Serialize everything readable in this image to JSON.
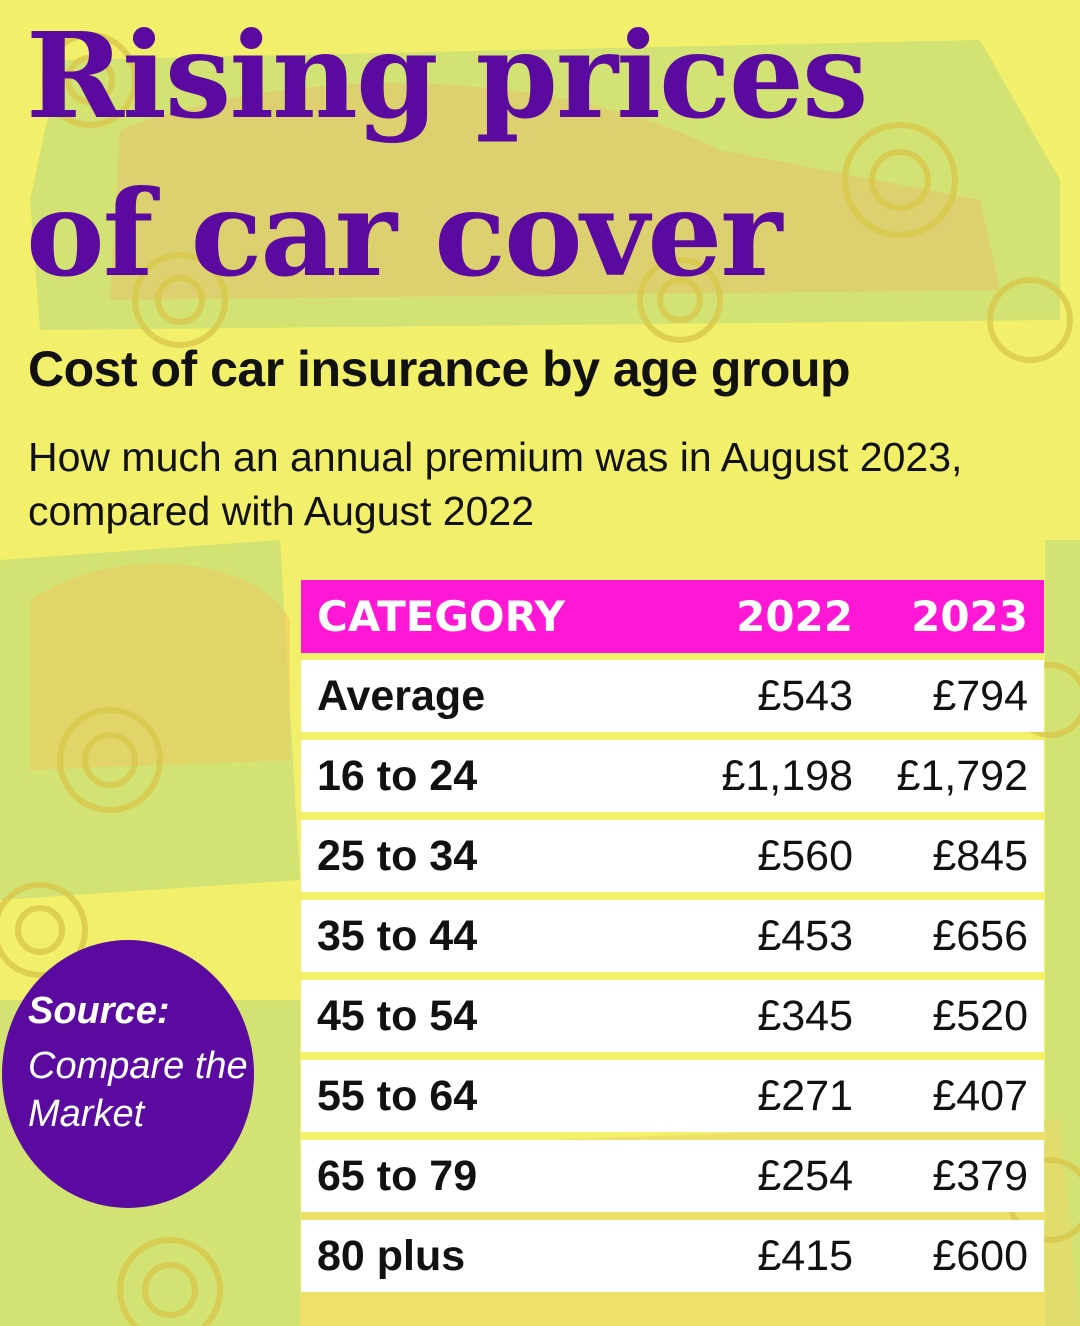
{
  "title_lines": [
    "Rising prices",
    "of car cover"
  ],
  "subtitle": "Cost of car insurance by age group",
  "standfirst": "How much an annual premium was in August 2023, compared with August 2022",
  "source": {
    "label": "Source:",
    "name": "Compare the Market"
  },
  "colors": {
    "title": "#5b0aa0",
    "header_bg": "#ff17d6",
    "background": "#f2f06a",
    "source_circle": "#5b0aa0"
  },
  "chart_data": {
    "type": "table",
    "columns": [
      "CATEGORY",
      "2022",
      "2023"
    ],
    "rows": [
      [
        "Average",
        "£543",
        "£794"
      ],
      [
        "16 to 24",
        "£1,198",
        "£1,792"
      ],
      [
        "25 to 34",
        "£560",
        "£845"
      ],
      [
        "35 to 44",
        "£453",
        "£656"
      ],
      [
        "45 to 54",
        "£345",
        "£520"
      ],
      [
        "55 to 64",
        "£271",
        "£407"
      ],
      [
        "65 to 79",
        "£254",
        "£379"
      ],
      [
        "80 plus",
        "£415",
        "£600"
      ]
    ]
  }
}
